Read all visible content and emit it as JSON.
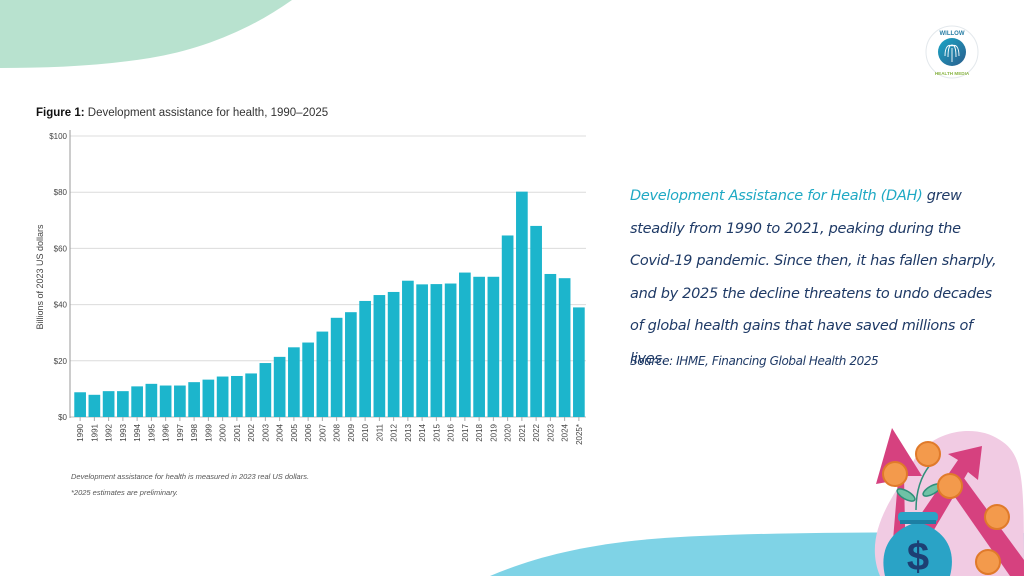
{
  "figure": {
    "label": "Figure 1:",
    "title": "Development assistance for health, 1990–2025"
  },
  "notes": [
    "Development assistance for health is measured in 2023 real US dollars.",
    "*2025 estimates are preliminary."
  ],
  "side_text": {
    "highlight": "Development Assistance for Health (DAH)",
    "line1_rest": " grew",
    "line2": "steadily from 1990 to 2021, peaking during the",
    "line3": "Covid-19 pandemic. Since then, it has fallen sharply,",
    "line4": "and by 2025 the decline threatens to undo decades",
    "line5": "of global health gains that have saved millions of lives.",
    "source": "Source: IHME, Financing Global Health 2025"
  },
  "logo": {
    "top_text": "WILLOW",
    "bottom_text": "HEALTH MEDIA"
  },
  "colors": {
    "bar": "#1cb5cc",
    "accent_text": "#1fa9c4",
    "body_text": "#1f3a66",
    "top_blob": "#b8e2cf",
    "bottom_wave": "#7fd3e6",
    "arrow": "#d6417f",
    "coin": "#f39a4c",
    "bag": "#2aa3c6"
  },
  "chart_data": {
    "type": "bar",
    "title": "Development assistance for health, 1990–2025",
    "xlabel": "",
    "ylabel": "Billions of 2023 US dollars",
    "ylim": [
      0,
      100
    ],
    "yticks": [
      0,
      20,
      40,
      60,
      80,
      100
    ],
    "ytick_labels": [
      "$0",
      "$20",
      "$40",
      "$60",
      "$80",
      "$100"
    ],
    "grid": true,
    "legend": "none",
    "categories": [
      "1990",
      "1991",
      "1992",
      "1993",
      "1994",
      "1995",
      "1996",
      "1997",
      "1998",
      "1999",
      "2000",
      "2001",
      "2002",
      "2003",
      "2004",
      "2005",
      "2006",
      "2007",
      "2008",
      "2009",
      "2010",
      "2011",
      "2012",
      "2013",
      "2014",
      "2015",
      "2016",
      "2017",
      "2018",
      "2019",
      "2020",
      "2021",
      "2022",
      "2023",
      "2024",
      "2025*"
    ],
    "values": [
      8.8,
      7.9,
      9.2,
      9.2,
      10.9,
      11.8,
      11.2,
      11.2,
      12.4,
      13.3,
      14.4,
      14.6,
      15.5,
      19.2,
      21.4,
      24.8,
      26.5,
      30.4,
      35.3,
      37.3,
      41.3,
      43.4,
      44.5,
      48.5,
      47.2,
      47.3,
      47.5,
      51.4,
      49.9,
      49.9,
      64.6,
      80.2,
      68.0,
      50.9,
      49.4,
      39.0
    ]
  }
}
